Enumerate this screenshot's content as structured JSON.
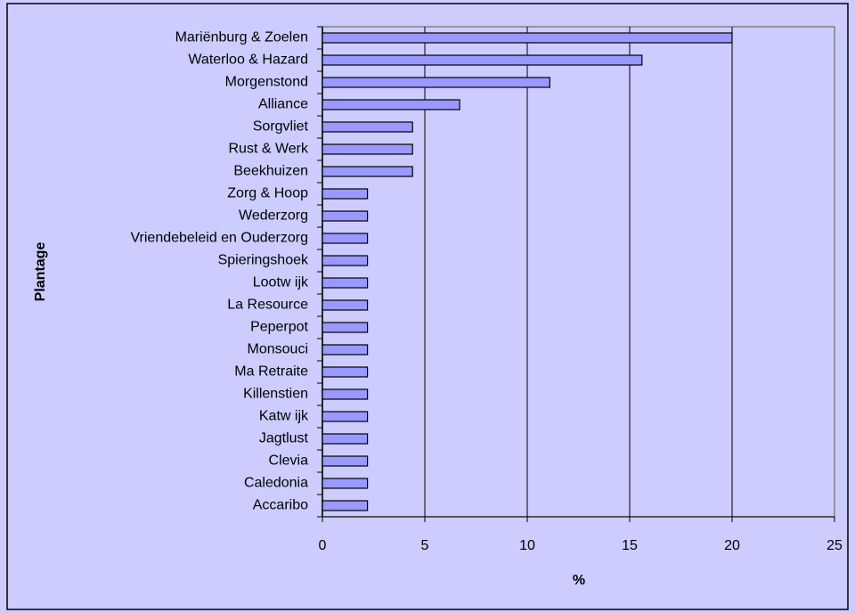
{
  "chart_data": {
    "type": "barh",
    "categories": [
      "Mariënburg & Zoelen",
      "Waterloo & Hazard",
      "Morgenstond",
      "Alliance",
      "Sorgvliet",
      "Rust & Werk",
      "Beekhuizen",
      "Zorg & Hoop",
      "Wederzorg",
      "Vriendebeleid en Ouderzorg",
      "Spieringshoek",
      "Lootw ijk",
      "La Resource",
      "Peperpot",
      "Monsouci",
      "Ma Retraite",
      "Killenstien",
      "Katw ijk",
      "Jagtlust",
      "Clevia",
      "Caledonia",
      "Accaribo"
    ],
    "values": [
      20,
      15.6,
      11.1,
      6.7,
      4.4,
      4.4,
      4.4,
      2.2,
      2.2,
      2.2,
      2.2,
      2.2,
      2.2,
      2.2,
      2.2,
      2.2,
      2.2,
      2.2,
      2.2,
      2.2,
      2.2,
      2.2
    ],
    "color": "#9999ff",
    "xlim": [
      0,
      25
    ],
    "xticks": [
      0,
      5,
      10,
      15,
      20,
      25
    ],
    "grid": true,
    "xlabel": "%",
    "ylabel": "Plantage"
  }
}
